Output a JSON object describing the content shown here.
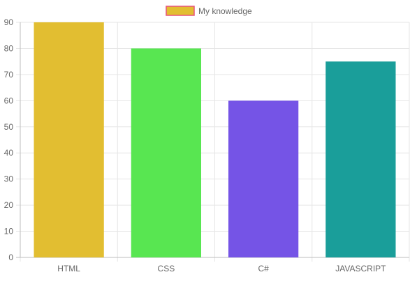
{
  "chart_data": {
    "type": "bar",
    "categories": [
      "HTML",
      "CSS",
      "C#",
      "JAVASCRIPT"
    ],
    "series": [
      {
        "name": "My knowledge",
        "values": [
          90,
          80,
          60,
          75
        ],
        "colors": [
          "#E2BE31",
          "#58E651",
          "#7554E6",
          "#1A9E9A"
        ]
      }
    ],
    "legend": {
      "label": "My knowledge",
      "swatch_fill": "#E2BE31",
      "swatch_border": "#E8547A",
      "position": "top-center"
    },
    "ylim": [
      0,
      90
    ],
    "yticks": [
      0,
      10,
      20,
      30,
      40,
      50,
      60,
      70,
      80,
      90
    ],
    "grid": true,
    "xlabel": "",
    "ylabel": ""
  }
}
